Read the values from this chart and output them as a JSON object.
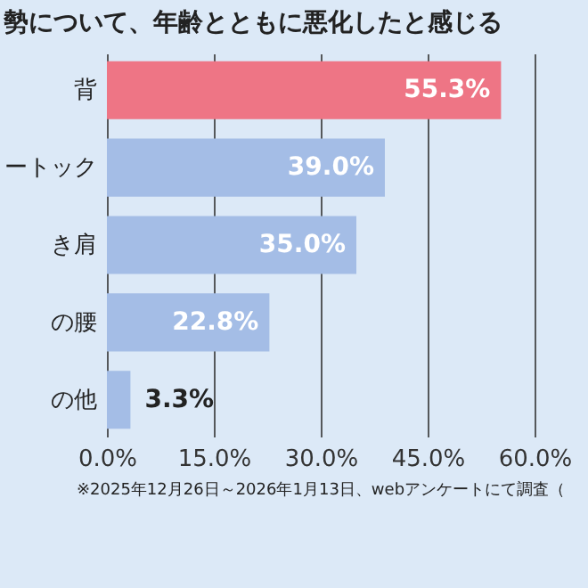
{
  "chart_data": {
    "type": "bar",
    "orientation": "horizontal",
    "title": "勢について、年齢とともに悪化したと感じる",
    "categories": [
      "背",
      "ートック",
      "き肩",
      "の腰",
      "の他"
    ],
    "values": [
      55.3,
      39.0,
      35.0,
      22.8,
      3.3
    ],
    "colors": [
      "#ee7585",
      "#a4bde6",
      "#a4bde6",
      "#a4bde6",
      "#a4bde6"
    ],
    "value_labels": [
      "55.3%",
      "39.0%",
      "35.0%",
      "22.8%",
      "3.3%"
    ],
    "xlim": [
      0,
      60
    ],
    "xticks": [
      {
        "value": 0,
        "label": "0.0%"
      },
      {
        "value": 15,
        "label": "15.0%"
      },
      {
        "value": 30,
        "label": "30.0%"
      },
      {
        "value": 45,
        "label": "45.0%"
      },
      {
        "value": 60,
        "label": "60.0%"
      }
    ],
    "grid": "x",
    "annotations": [
      "※2025年12月26日～2026年1月13日、webアンケートにて調査（"
    ]
  }
}
